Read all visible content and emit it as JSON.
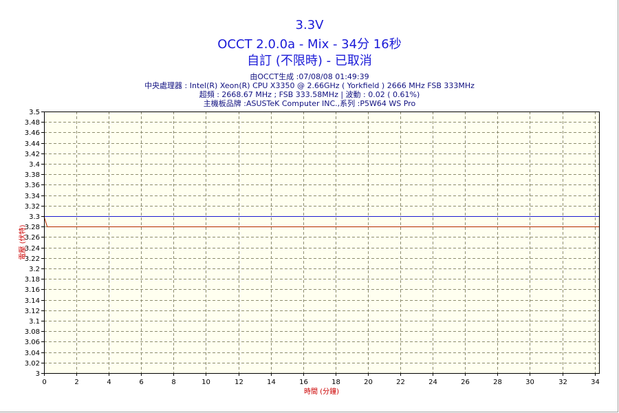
{
  "header": {
    "title": "3.3V",
    "subtitle": "OCCT 2.0.0a - Mix - 34分 16秒",
    "status": "自訂 (不限時) - 已取消",
    "info_lines": [
      "由OCCT生成 :07/08/08 01:49:39",
      "中央處理器 : Intel(R) Xeon(R) CPU X3350 @ 2.66GHz ( Yorkfield ) 2666 MHz FSB 333MHz",
      "超頻 : 2668.67 MHz ; FSB 333.58MHz | 波動 : 0.02 ( 0.61%)",
      "主機板品牌 :ASUSTeK Computer INC.,系列 :P5W64 WS Pro"
    ]
  },
  "colors": {
    "plot_background": "#fffff0",
    "grid": "#8c8c6e",
    "series_reference": "#1a1ad0",
    "series_measured": "#b42800",
    "text_header": "#1b1bd8",
    "axis_label": "#cc0000"
  },
  "chart_data": {
    "type": "line",
    "xlabel": "時間 (分鐘)",
    "ylabel": "電壓 (伏特)",
    "xlim": [
      0,
      34.27
    ],
    "ylim": [
      3.0,
      3.5
    ],
    "x_ticks": [
      0,
      2,
      4,
      6,
      8,
      10,
      12,
      14,
      16,
      18,
      20,
      22,
      24,
      26,
      28,
      30,
      32,
      34
    ],
    "y_ticks": [
      "3",
      "3.02",
      "3.04",
      "3.06",
      "3.08",
      "3.1",
      "3.12",
      "3.14",
      "3.16",
      "3.18",
      "3.2",
      "3.22",
      "3.24",
      "3.26",
      "3.28",
      "3.3",
      "3.32",
      "3.34",
      "3.36",
      "3.38",
      "3.4",
      "3.42",
      "3.44",
      "3.46",
      "3.48",
      "3.5"
    ],
    "grid": true,
    "series": [
      {
        "color": "#1a1ad0",
        "points": [
          [
            0,
            3.3
          ],
          [
            34.27,
            3.3
          ]
        ]
      },
      {
        "color": "#b42800",
        "points": [
          [
            0,
            3.3
          ],
          [
            0.2,
            3.28
          ],
          [
            34.27,
            3.28
          ]
        ]
      }
    ]
  }
}
